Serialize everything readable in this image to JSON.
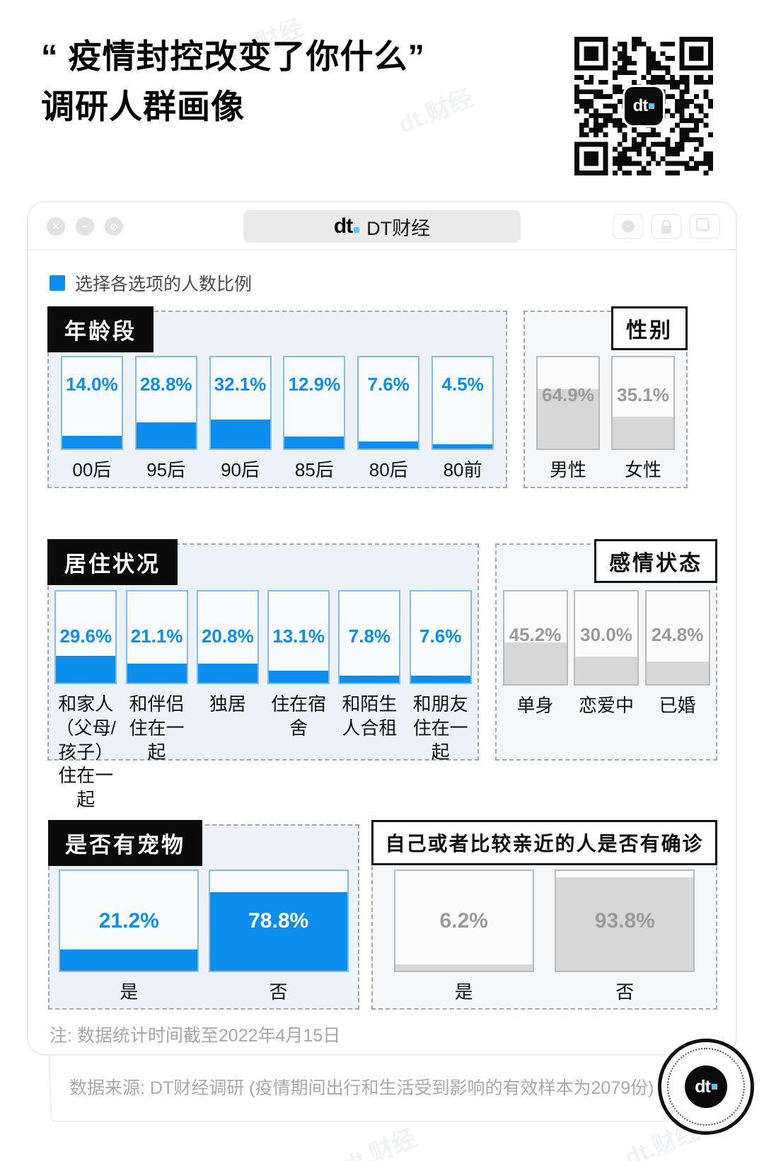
{
  "page": {
    "title_line1": "“ 疫情封控改变了你什么”",
    "title_line2": "调研人群画像",
    "watermark": "dt.财经"
  },
  "window": {
    "title": "DT财经",
    "logo_text": "dt",
    "controls": {
      "close": "✕",
      "minimize": "−",
      "block": "⊘"
    }
  },
  "legend": {
    "label": "选择各选项的人数比例",
    "color": "#0c8eef"
  },
  "colors": {
    "blue": "#0c8eef",
    "gray_fill": "#d7d7d7",
    "gray_text": "#9a9a9a",
    "blue_section_bg": "#edf2f8",
    "gray_section_bg": "#f5f6f7"
  },
  "note": "注: 数据统计时间截至2022年4月15日",
  "footer": "数据来源: DT财经调研 (疫情期间出行和生活受到影响的有效样本为2079份)",
  "chart_data": [
    {
      "type": "bar",
      "title": "年龄段",
      "style": "blue",
      "unit": "%",
      "categories": [
        "00后",
        "95后",
        "90后",
        "85后",
        "80后",
        "80前"
      ],
      "values": [
        14.0,
        28.8,
        32.1,
        12.9,
        7.6,
        4.5
      ],
      "labels": [
        "14.0%",
        "28.8%",
        "32.1%",
        "12.9%",
        "7.6%",
        "4.5%"
      ],
      "ylim": [
        0,
        100
      ]
    },
    {
      "type": "bar",
      "title": "性别",
      "style": "gray",
      "unit": "%",
      "categories": [
        "男性",
        "女性"
      ],
      "values": [
        64.9,
        35.1
      ],
      "labels": [
        "64.9%",
        "35.1%"
      ],
      "ylim": [
        0,
        100
      ]
    },
    {
      "type": "bar",
      "title": "居住状况",
      "style": "blue",
      "unit": "%",
      "categories": [
        "和家人（父母/孩子）住在一起",
        "和伴侣住在一起",
        "独居",
        "住在宿舍",
        "和陌生人合租",
        "和朋友住在一起"
      ],
      "values": [
        29.6,
        21.1,
        20.8,
        13.1,
        7.8,
        7.6
      ],
      "labels": [
        "29.6%",
        "21.1%",
        "20.8%",
        "13.1%",
        "7.8%",
        "7.6%"
      ],
      "ylim": [
        0,
        100
      ]
    },
    {
      "type": "bar",
      "title": "感情状态",
      "style": "gray",
      "unit": "%",
      "categories": [
        "单身",
        "恋爱中",
        "已婚"
      ],
      "values": [
        45.2,
        30.0,
        24.8
      ],
      "labels": [
        "45.2%",
        "30.0%",
        "24.8%"
      ],
      "ylim": [
        0,
        100
      ]
    },
    {
      "type": "bar",
      "title": "是否有宠物",
      "style": "blue",
      "unit": "%",
      "categories": [
        "是",
        "否"
      ],
      "values": [
        21.2,
        78.8
      ],
      "labels": [
        "21.2%",
        "78.8%"
      ],
      "ylim": [
        0,
        100
      ]
    },
    {
      "type": "bar",
      "title": "自己或者比较亲近的人是否有确诊",
      "style": "gray",
      "unit": "%",
      "categories": [
        "是",
        "否"
      ],
      "values": [
        6.2,
        93.8
      ],
      "labels": [
        "6.2%",
        "93.8%"
      ],
      "ylim": [
        0,
        100
      ]
    }
  ]
}
